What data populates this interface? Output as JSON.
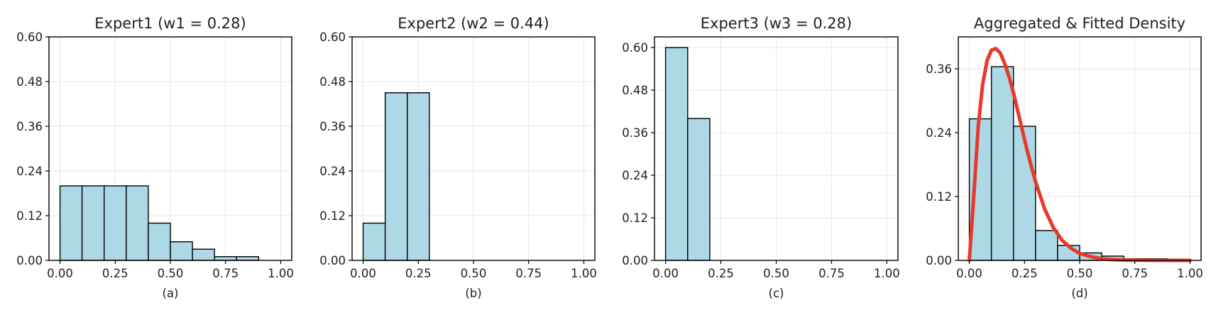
{
  "chart_data": [
    {
      "type": "bar",
      "title": "Expert1 (w1 = 0.28)",
      "sublabel": "(a)",
      "xlim": [
        -0.05,
        1.05
      ],
      "ylim": [
        0,
        0.6
      ],
      "yticks": [
        0.0,
        0.12,
        0.24,
        0.36,
        0.48,
        0.6
      ],
      "ytick_labels": [
        "0.00",
        "0.12",
        "0.24",
        "0.36",
        "0.48",
        "0.60"
      ],
      "xticks": [
        0,
        0.25,
        0.5,
        0.75,
        1.0
      ],
      "xtick_labels": [
        "0.00",
        "0.25",
        "0.50",
        "0.75",
        "1.00"
      ],
      "grid": true,
      "bin_width": 0.1,
      "bin_starts": [
        0,
        0.1,
        0.2,
        0.3,
        0.4,
        0.5,
        0.6,
        0.7,
        0.8
      ],
      "values": [
        0.2,
        0.2,
        0.2,
        0.2,
        0.1,
        0.05,
        0.03,
        0.01,
        0.01
      ],
      "bar_color": "#add8e6"
    },
    {
      "type": "bar",
      "title": "Expert2 (w2 = 0.44)",
      "sublabel": "(b)",
      "xlim": [
        -0.05,
        1.05
      ],
      "ylim": [
        0,
        0.6
      ],
      "yticks": [
        0.0,
        0.12,
        0.24,
        0.36,
        0.48,
        0.6
      ],
      "ytick_labels": [
        "0.00",
        "0.12",
        "0.24",
        "0.36",
        "0.48",
        "0.60"
      ],
      "xticks": [
        0,
        0.25,
        0.5,
        0.75,
        1.0
      ],
      "xtick_labels": [
        "0.00",
        "0.25",
        "0.50",
        "0.75",
        "1.00"
      ],
      "grid": true,
      "bin_width": 0.1,
      "bin_starts": [
        0,
        0.1,
        0.2
      ],
      "values": [
        0.1,
        0.45,
        0.45
      ],
      "bar_color": "#add8e6"
    },
    {
      "type": "bar",
      "title": "Expert3 (w3 = 0.28)",
      "sublabel": "(c)",
      "xlim": [
        -0.05,
        1.05
      ],
      "ylim": [
        0,
        0.63
      ],
      "yticks": [
        0.0,
        0.12,
        0.24,
        0.36,
        0.48,
        0.6
      ],
      "ytick_labels": [
        "0.00",
        "0.12",
        "0.24",
        "0.36",
        "0.48",
        "0.60"
      ],
      "xticks": [
        0,
        0.25,
        0.5,
        0.75,
        1.0
      ],
      "xtick_labels": [
        "0.00",
        "0.25",
        "0.50",
        "0.75",
        "1.00"
      ],
      "grid": true,
      "bin_width": 0.1,
      "bin_starts": [
        0,
        0.1
      ],
      "values": [
        0.6,
        0.4
      ],
      "bar_color": "#add8e6"
    },
    {
      "type": "bar",
      "title": "Aggregated & Fitted Density",
      "sublabel": "(d)",
      "xlim": [
        -0.05,
        1.05
      ],
      "ylim": [
        0,
        0.42
      ],
      "yticks": [
        0.0,
        0.12,
        0.24,
        0.36
      ],
      "ytick_labels": [
        "0.00",
        "0.12",
        "0.24",
        "0.36"
      ],
      "xticks": [
        0,
        0.25,
        0.5,
        0.75,
        1.0
      ],
      "xtick_labels": [
        "0.00",
        "0.25",
        "0.50",
        "0.75",
        "1.00"
      ],
      "grid": true,
      "bin_width": 0.1,
      "bin_starts": [
        0,
        0.1,
        0.2,
        0.3,
        0.4,
        0.5,
        0.6,
        0.7,
        0.8
      ],
      "values": [
        0.266,
        0.364,
        0.252,
        0.056,
        0.028,
        0.014,
        0.008,
        0.003,
        0.003
      ],
      "bar_color": "#add8e6",
      "fitted_curve": {
        "type": "line",
        "color": "#e8392a",
        "x": [
          0,
          0.02,
          0.04,
          0.06,
          0.08,
          0.1,
          0.12,
          0.14,
          0.16,
          0.18,
          0.2,
          0.22,
          0.24,
          0.26,
          0.28,
          0.3,
          0.34,
          0.38,
          0.42,
          0.46,
          0.5,
          0.55,
          0.6,
          0.65,
          0.7,
          0.8,
          0.9,
          1.0
        ],
        "y": [
          0.0,
          0.12,
          0.25,
          0.33,
          0.375,
          0.395,
          0.398,
          0.39,
          0.37,
          0.345,
          0.315,
          0.28,
          0.245,
          0.21,
          0.178,
          0.148,
          0.098,
          0.062,
          0.038,
          0.023,
          0.013,
          0.007,
          0.003,
          0.0015,
          0.0006,
          0.0001,
          0.0,
          0.0
        ]
      }
    }
  ]
}
